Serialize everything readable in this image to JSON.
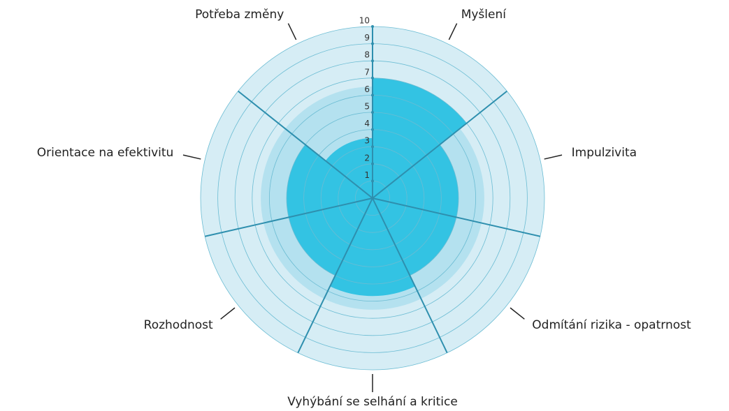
{
  "chart_data": {
    "type": "polar_area",
    "categories": [
      "Myšlení",
      "Impulzivita",
      "Odmítání rizika - opatrnost",
      "Vyhýbání se selhání a kritice",
      "Rozhodnost",
      "Orientace na efektivitu",
      "Potřeba změny"
    ],
    "series": [
      {
        "color": "#b4e1ef",
        "values": [
          6.5,
          6.5,
          6.5,
          6.5,
          6.5,
          6.5,
          6.5
        ]
      },
      {
        "color": "#33c3e3",
        "values": [
          7,
          5,
          5,
          5.7,
          5,
          5,
          3.5
        ]
      }
    ],
    "rlim": [
      0,
      10
    ],
    "rticks": [
      1,
      2,
      3,
      4,
      5,
      6,
      7,
      8,
      9,
      10
    ],
    "background_color": "#d6edf5",
    "grid": true
  }
}
